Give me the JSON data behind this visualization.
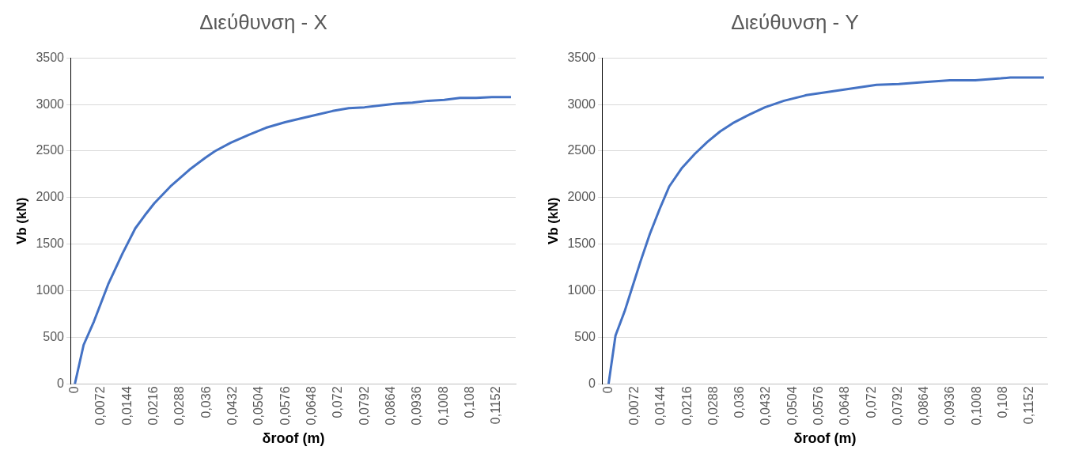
{
  "chart_data": [
    {
      "type": "line",
      "title": "Διεύθυνση - X",
      "xlabel": "δroof (m)",
      "ylabel": "Vb (kN)",
      "grid": "y",
      "legend": false,
      "marker": "none",
      "line_style": "solid",
      "xlim": [
        -0.001,
        0.1204
      ],
      "ylim": [
        0,
        3500
      ],
      "yticks": [
        0,
        500,
        1000,
        1500,
        2000,
        2500,
        3000,
        3500
      ],
      "xticks": [
        0,
        {
          "value": 0.0072,
          "label": "0,0072"
        },
        {
          "value": 0.0144,
          "label": "0,0144"
        },
        {
          "value": 0.0216,
          "label": "0,0216"
        },
        {
          "value": 0.0288,
          "label": "0,0288"
        },
        {
          "value": 0.036,
          "label": "0,036"
        },
        {
          "value": 0.0432,
          "label": "0,0432"
        },
        {
          "value": 0.0504,
          "label": "0,0504"
        },
        {
          "value": 0.0576,
          "label": "0,0576"
        },
        {
          "value": 0.0648,
          "label": "0,0648"
        },
        {
          "value": 0.072,
          "label": "0,072"
        },
        {
          "value": 0.0792,
          "label": "0,0792"
        },
        {
          "value": 0.0864,
          "label": "0,0864"
        },
        {
          "value": 0.0936,
          "label": "0,0936"
        },
        {
          "value": 0.1008,
          "label": "0,1008"
        },
        {
          "value": 0.108,
          "label": "0,108"
        },
        {
          "value": 0.1152,
          "label": "0,1152"
        }
      ],
      "series": [
        {
          "color": "#4472c4",
          "x": [
            0,
            0.0024,
            0.0052,
            0.0091,
            0.013,
            0.0165,
            0.0191,
            0.0217,
            0.0261,
            0.0287,
            0.0313,
            0.0357,
            0.0383,
            0.0426,
            0.0478,
            0.0522,
            0.0574,
            0.0617,
            0.0661,
            0.0704,
            0.0748,
            0.0791,
            0.0835,
            0.0878,
            0.0922,
            0.0965,
            0.1009,
            0.1052,
            0.1096,
            0.1139,
            0.1191
          ],
          "values": [
            0,
            420,
            670,
            1070,
            1400,
            1670,
            1810,
            1940,
            2120,
            2210,
            2300,
            2430,
            2500,
            2590,
            2680,
            2750,
            2810,
            2850,
            2890,
            2930,
            2960,
            2970,
            2990,
            3010,
            3020,
            3040,
            3050,
            3070,
            3070,
            3080,
            3080
          ]
        }
      ]
    },
    {
      "type": "line",
      "title": "Διεύθυνση - Y",
      "xlabel": "δroof (m)",
      "ylabel": "Vb (kN)",
      "grid": "y",
      "legend": false,
      "marker": "none",
      "line_style": "solid",
      "xlim": [
        -0.0016,
        0.12
      ],
      "ylim": [
        0,
        3500
      ],
      "yticks": [
        0,
        500,
        1000,
        1500,
        2000,
        2500,
        3000,
        3500
      ],
      "xticks": [
        0,
        {
          "value": 0.0072,
          "label": "0,0072"
        },
        {
          "value": 0.0144,
          "label": "0,0144"
        },
        {
          "value": 0.0216,
          "label": "0,0216"
        },
        {
          "value": 0.0288,
          "label": "0,0288"
        },
        {
          "value": 0.036,
          "label": "0,036"
        },
        {
          "value": 0.0432,
          "label": "0,0432"
        },
        {
          "value": 0.0504,
          "label": "0,0504"
        },
        {
          "value": 0.0576,
          "label": "0,0576"
        },
        {
          "value": 0.0648,
          "label": "0,0648"
        },
        {
          "value": 0.072,
          "label": "0,072"
        },
        {
          "value": 0.0792,
          "label": "0,0792"
        },
        {
          "value": 0.0864,
          "label": "0,0864"
        },
        {
          "value": 0.0936,
          "label": "0,0936"
        },
        {
          "value": 0.1008,
          "label": "0,1008"
        },
        {
          "value": 0.108,
          "label": "0,108"
        },
        {
          "value": 0.1152,
          "label": "0,1152"
        }
      ],
      "series": [
        {
          "color": "#4472c4",
          "x": [
            0,
            0.0019,
            0.0044,
            0.0065,
            0.0087,
            0.0113,
            0.014,
            0.0166,
            0.0201,
            0.0236,
            0.0271,
            0.0305,
            0.034,
            0.0384,
            0.0428,
            0.048,
            0.0541,
            0.0593,
            0.0663,
            0.0733,
            0.0794,
            0.0864,
            0.0934,
            0.1003,
            0.1073,
            0.1099,
            0.1191
          ],
          "values": [
            0,
            520,
            780,
            1040,
            1310,
            1610,
            1880,
            2120,
            2320,
            2470,
            2600,
            2710,
            2800,
            2890,
            2970,
            3040,
            3100,
            3130,
            3170,
            3210,
            3220,
            3240,
            3260,
            3260,
            3280,
            3290,
            3290
          ]
        }
      ]
    }
  ]
}
